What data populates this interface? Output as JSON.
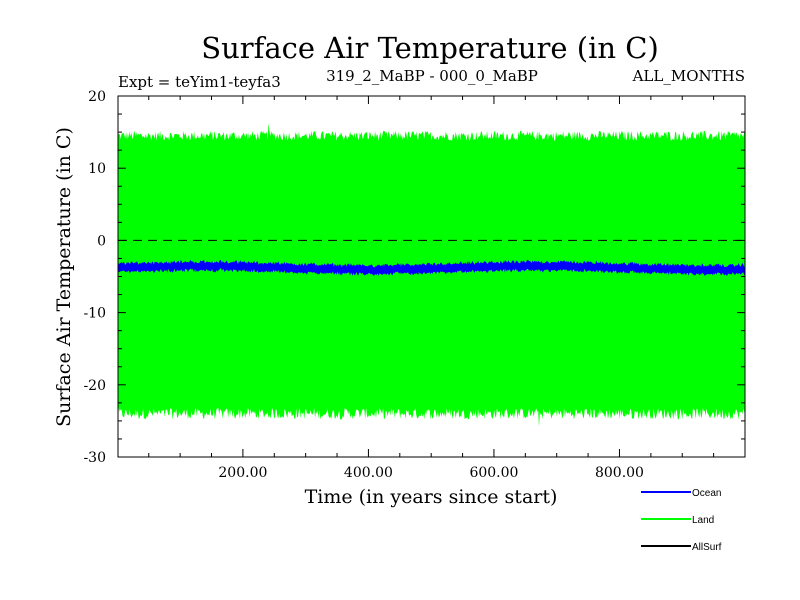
{
  "chart_data": {
    "type": "area",
    "title": "Surface Air Temperature (in C)",
    "experiment": "Expt = teYim1-teyfa3",
    "subtitle_center": "319_2_MaBP - 000_0_MaBP",
    "subtitle_right": "ALL_MONTHS",
    "xlabel": "Time (in years since start)",
    "ylabel": "Surface Air Temperature (in C)",
    "xlim": [
      1,
      1000
    ],
    "ylim": [
      -30,
      20
    ],
    "x_ticks": [
      200,
      400,
      600,
      800
    ],
    "x_tick_labels": [
      "200.00",
      "400.00",
      "600.00",
      "800.00"
    ],
    "y_ticks": [
      20,
      10,
      0,
      -10,
      -20,
      -30
    ],
    "y_tick_labels": [
      "20",
      "10",
      "0",
      "-10",
      "-20",
      "-30"
    ],
    "reference_line": {
      "y": 0,
      "style": "dashed"
    },
    "series": [
      {
        "name": "Land",
        "color": "#00ff00",
        "description_range": "annual cycle envelope",
        "upper_mean": 14.5,
        "upper_max": 16.2,
        "lower_mean": -24.0,
        "lower_min": -25.8
      },
      {
        "name": "Ocean",
        "color": "#0000ff",
        "mean": -3.8,
        "band_low": -4.5,
        "band_high": -3.0
      },
      {
        "name": "AllSurf",
        "color": "#000000"
      }
    ],
    "legend": [
      {
        "name": "Ocean",
        "color": "#0000ff"
      },
      {
        "name": "Land",
        "color": "#00ff00"
      },
      {
        "name": "AllSurf",
        "color": "#000000"
      }
    ]
  }
}
